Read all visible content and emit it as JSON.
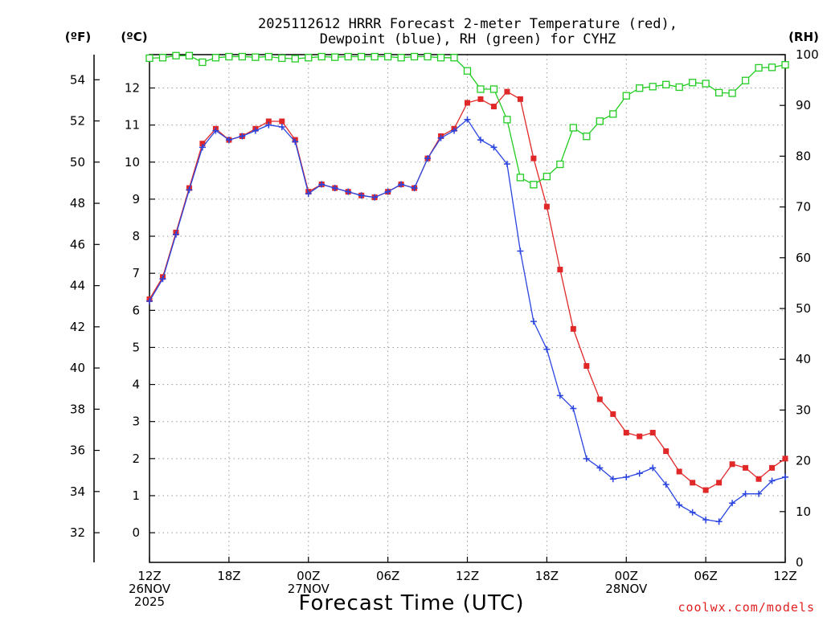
{
  "chart_data": {
    "type": "line",
    "title_line1": "2025112612 HRRR Forecast 2-meter Temperature (red),",
    "title_line2": "Dewpoint (blue), RH (green) for CYHZ",
    "xlabel": "Forecast Time (UTC)",
    "credit": "coolwx.com/models",
    "units": {
      "fahrenheit": "(ºF)",
      "celsius": "(ºC)",
      "rh": "(RH)"
    },
    "x_unit": "forecast hour from 2025-11-26 12Z",
    "xlim": [
      0,
      48
    ],
    "x_ticks": [
      {
        "x": 0,
        "lines": [
          "12Z",
          "26NOV",
          "2025"
        ]
      },
      {
        "x": 6,
        "lines": [
          "18Z"
        ]
      },
      {
        "x": 12,
        "lines": [
          "00Z",
          "27NOV"
        ]
      },
      {
        "x": 18,
        "lines": [
          "06Z"
        ]
      },
      {
        "x": 24,
        "lines": [
          "12Z"
        ]
      },
      {
        "x": 30,
        "lines": [
          "18Z"
        ]
      },
      {
        "x": 36,
        "lines": [
          "00Z",
          "28NOV"
        ]
      },
      {
        "x": 42,
        "lines": [
          "06Z"
        ]
      },
      {
        "x": 48,
        "lines": [
          "12Z"
        ]
      }
    ],
    "celsius_axis": {
      "ylim": [
        -0.8,
        12.9
      ],
      "ticks": [
        0,
        1,
        2,
        3,
        4,
        5,
        6,
        7,
        8,
        9,
        10,
        11,
        12
      ]
    },
    "fahrenheit_axis": {
      "ylim": [
        30.56,
        55.22
      ],
      "ticks": [
        32,
        34,
        36,
        38,
        40,
        42,
        44,
        46,
        48,
        50,
        52,
        54
      ]
    },
    "rh_axis": {
      "ylim": [
        0,
        100
      ],
      "ticks": [
        0,
        10,
        20,
        30,
        40,
        50,
        60,
        70,
        80,
        90,
        100
      ]
    },
    "series": [
      {
        "name": "2-meter Temperature",
        "color": "#e02828",
        "axis": "celsius",
        "marker": "filled-square",
        "values": [
          6.3,
          6.9,
          8.1,
          9.3,
          10.5,
          10.9,
          10.6,
          10.7,
          10.9,
          11.1,
          11.1,
          10.6,
          9.2,
          9.4,
          9.3,
          9.2,
          9.1,
          9.05,
          9.2,
          9.4,
          9.3,
          10.1,
          10.7,
          10.9,
          11.6,
          11.7,
          11.5,
          11.9,
          11.7,
          10.1,
          8.8,
          7.1,
          5.5,
          4.5,
          3.6,
          3.2,
          2.7,
          2.6,
          2.7,
          2.2,
          1.65,
          1.35,
          1.15,
          1.35,
          1.85,
          1.75,
          1.45,
          1.75,
          2.0
        ]
      },
      {
        "name": "Dewpoint",
        "color": "#2a44e0",
        "axis": "celsius",
        "marker": "plus",
        "values": [
          6.25,
          6.85,
          8.05,
          9.25,
          10.4,
          10.85,
          10.6,
          10.7,
          10.85,
          11.0,
          10.95,
          10.55,
          9.15,
          9.4,
          9.3,
          9.2,
          9.1,
          9.05,
          9.2,
          9.4,
          9.3,
          10.1,
          10.65,
          10.85,
          11.15,
          10.6,
          10.4,
          9.95,
          7.6,
          5.7,
          4.95,
          3.7,
          3.35,
          2.0,
          1.75,
          1.45,
          1.5,
          1.6,
          1.75,
          1.3,
          0.75,
          0.55,
          0.35,
          0.3,
          0.8,
          1.05,
          1.05,
          1.4,
          1.5
        ]
      },
      {
        "name": "RH",
        "color": "#22cc22",
        "axis": "rh",
        "marker": "open-square",
        "values": [
          99.3,
          99.4,
          99.8,
          99.8,
          98.5,
          99.4,
          99.6,
          99.6,
          99.5,
          99.6,
          99.3,
          99.2,
          99.4,
          99.6,
          99.5,
          99.6,
          99.6,
          99.6,
          99.6,
          99.4,
          99.6,
          99.6,
          99.4,
          99.4,
          96.8,
          93.2,
          93.2,
          87.2,
          75.8,
          74.4,
          76.0,
          78.4,
          85.6,
          83.9,
          86.9,
          88.3,
          91.9,
          93.4,
          93.7,
          94.1,
          93.6,
          94.5,
          94.3,
          92.5,
          92.4,
          94.9,
          97.4,
          97.5,
          98.0
        ]
      }
    ]
  }
}
